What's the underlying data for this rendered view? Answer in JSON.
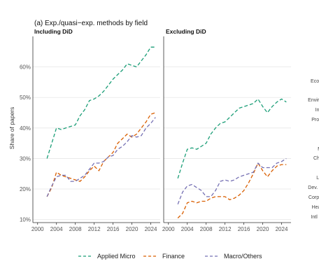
{
  "chart_data": {
    "type": "line",
    "title": "(a) Exp./quasi−exp. methods by field",
    "ylabel": "Share of papers",
    "xlabel": "",
    "xlim": [
      1999,
      2026
    ],
    "ylim": [
      9,
      70
    ],
    "x_ticks": [
      2000,
      2004,
      2008,
      2012,
      2016,
      2020,
      2024
    ],
    "y_ticks": [
      10,
      20,
      30,
      40,
      50,
      60
    ],
    "y_tick_labels": [
      "10%",
      "20%",
      "30%",
      "40%",
      "50%",
      "60%"
    ],
    "grid": "horizontal",
    "legend_position": "bottom",
    "colors": {
      "Applied Micro": "#1b9e77",
      "Finance": "#d95f02",
      "Macro/Others": "#7570b3"
    },
    "panels": [
      {
        "title": "Including DiD",
        "x": [
          2002,
          2003,
          2004,
          2005,
          2006,
          2007,
          2008,
          2009,
          2010,
          2011,
          2012,
          2013,
          2014,
          2015,
          2016,
          2017,
          2018,
          2019,
          2020,
          2021,
          2022,
          2023,
          2024,
          2025
        ],
        "series": [
          {
            "name": "Applied Micro",
            "values": [
              30,
              35,
              40,
              39.5,
              40,
              40.5,
              41,
              44,
              46,
              49,
              49.5,
              50.5,
              52,
              54,
              56,
              57.5,
              59,
              61,
              60.5,
              60,
              62,
              64,
              66.5,
              66.5
            ]
          },
          {
            "name": "Finance",
            "values": [
              17.5,
              20.5,
              25.5,
              24.5,
              24,
              23.5,
              23,
              22.5,
              24,
              26,
              27.5,
              26,
              29,
              30.5,
              32,
              35,
              36.5,
              38,
              37,
              38,
              40,
              42,
              44.5,
              45
            ]
          },
          {
            "name": "Macro/Others",
            "values": [
              17.5,
              21,
              24,
              24.5,
              24.5,
              22.5,
              22.5,
              23.5,
              24.5,
              26.5,
              28.5,
              28.5,
              29,
              30.5,
              31,
              33,
              34,
              35.5,
              37.5,
              37,
              37.5,
              40,
              41.5,
              43.5
            ]
          }
        ]
      },
      {
        "title": "Excluding DiD",
        "x": [
          2002,
          2003,
          2004,
          2005,
          2006,
          2007,
          2008,
          2009,
          2010,
          2011,
          2012,
          2013,
          2014,
          2015,
          2016,
          2017,
          2018,
          2019,
          2020,
          2021,
          2022,
          2023,
          2024,
          2025
        ],
        "series": [
          {
            "name": "Applied Micro",
            "values": [
              23.5,
              28.5,
              33,
              33.5,
              33,
              34,
              35,
              38,
              40,
              41.5,
              42,
              43.5,
              45,
              46.5,
              47,
              47.5,
              48,
              49.5,
              47,
              45,
              47,
              48.5,
              49.5,
              48.5
            ]
          },
          {
            "name": "Finance",
            "values": [
              10.5,
              12,
              15.5,
              16,
              15.5,
              16,
              16,
              17,
              17.5,
              17.5,
              17.5,
              16.5,
              17,
              18,
              19.5,
              22,
              25,
              28.5,
              26,
              24,
              26,
              27.5,
              28,
              28
            ]
          },
          {
            "name": "Macro/Others",
            "values": [
              15,
              19,
              21,
              21.5,
              20.5,
              19.5,
              17.5,
              17.5,
              19.5,
              22.5,
              23,
              22.5,
              23,
              24,
              24.5,
              25,
              25.5,
              28.5,
              27,
              27,
              27,
              28.5,
              29,
              30
            ]
          }
        ]
      }
    ],
    "cut_off_panel_labels": [
      "l",
      "Econ",
      "Enviro",
      "Intl",
      "Prod",
      "M",
      "Chil",
      "La",
      "Dev. o",
      "Corpo",
      "Heal",
      "Intl F"
    ]
  }
}
